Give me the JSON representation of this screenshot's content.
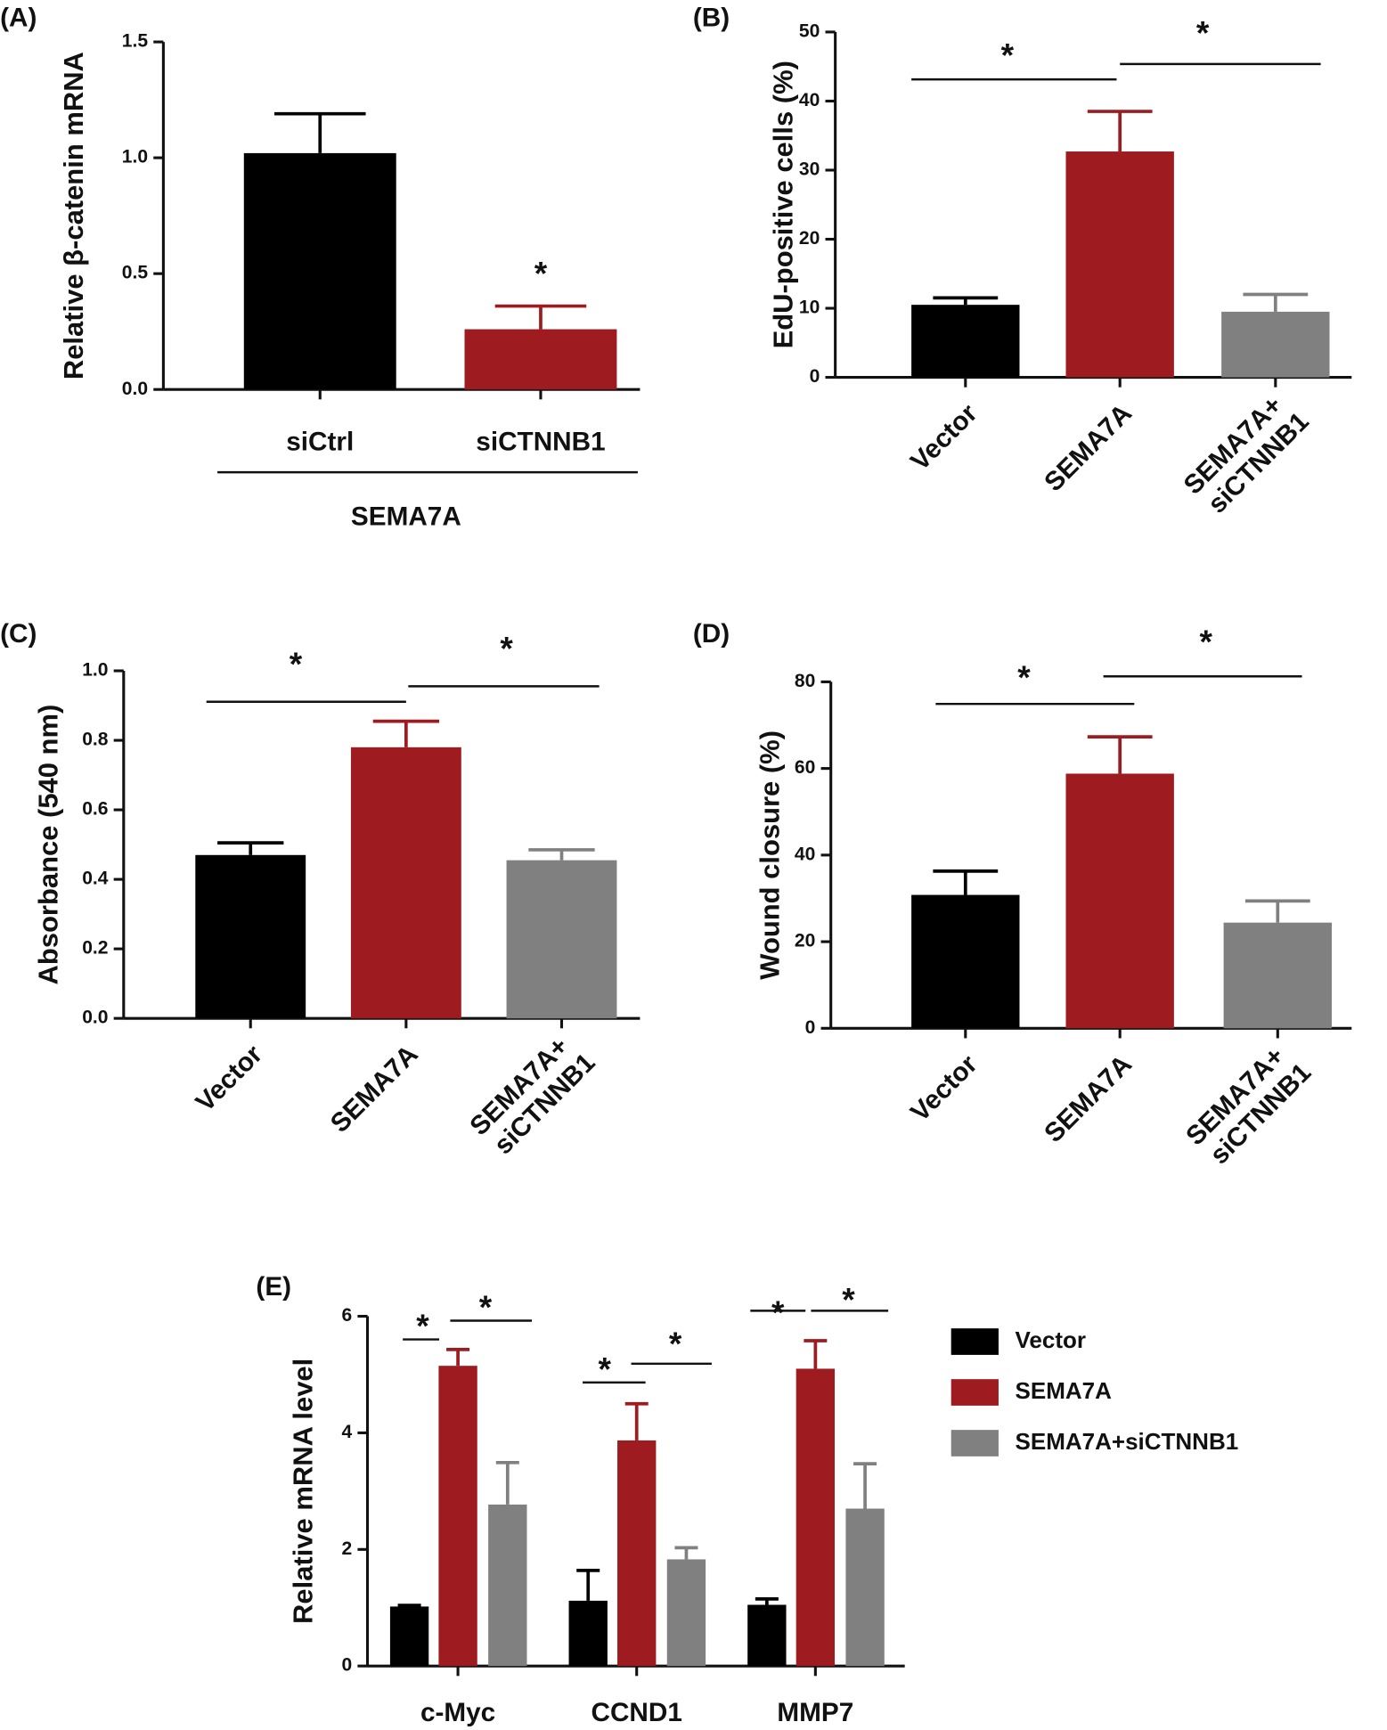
{
  "chart_data": [
    {
      "type": "bar",
      "panel": "(A)",
      "ylabel": "Relative β-catenin mRNA",
      "categories": [
        "siCtrl",
        "siCTNNB1"
      ],
      "group_label": "SEMA7A",
      "values": [
        1.02,
        0.26
      ],
      "errors": [
        0.17,
        0.1
      ],
      "colors": [
        "#000000",
        "#9e1b20"
      ],
      "ylim": [
        0,
        1.5
      ],
      "yticks": [
        {
          "value": 0,
          "label": "0.0"
        },
        0.5,
        {
          "value": 1,
          "label": "1.0"
        },
        1.5
      ],
      "annotations": [
        "*"
      ]
    },
    {
      "type": "bar",
      "panel": "(B)",
      "ylabel": "EdU-positive cells (%)",
      "categories": [
        "Vector",
        "SEMA7A",
        "SEMA7A+ siCTNNB1"
      ],
      "values": [
        10.5,
        32.7,
        9.5
      ],
      "errors": [
        1.0,
        5.8,
        2.5
      ],
      "colors": [
        "#000000",
        "#9e1b20",
        "#808080"
      ],
      "ylim": [
        0,
        50
      ],
      "yticks": [
        0,
        10,
        20,
        30,
        40,
        50
      ],
      "annotations": [
        "*",
        "*"
      ]
    },
    {
      "type": "bar",
      "panel": "(C)",
      "ylabel": "Absorbance (540 nm)",
      "categories": [
        "Vector",
        "SEMA7A",
        "SEMA7A+ siCTNNB1"
      ],
      "values": [
        0.47,
        0.78,
        0.455
      ],
      "errors": [
        0.035,
        0.075,
        0.03
      ],
      "colors": [
        "#000000",
        "#9e1b20",
        "#808080"
      ],
      "ylim": [
        0,
        1
      ],
      "yticks": [
        {
          "value": 0,
          "label": "0.0"
        },
        0.2,
        0.4,
        0.6,
        0.8,
        {
          "value": 1,
          "label": "1.0"
        }
      ],
      "annotations": [
        "*",
        "*"
      ]
    },
    {
      "type": "bar",
      "panel": "(D)",
      "ylabel": "Wound closure (%)",
      "categories": [
        "Vector",
        "SEMA7A",
        "SEMA7A+ siCTNNB1"
      ],
      "values": [
        30.8,
        58.8,
        24.4
      ],
      "errors": [
        5.5,
        8.5,
        5.0
      ],
      "colors": [
        "#000000",
        "#9e1b20",
        "#808080"
      ],
      "ylim": [
        0,
        80
      ],
      "yticks": [
        0,
        20,
        40,
        60,
        80
      ],
      "annotations": [
        "*",
        "*"
      ]
    },
    {
      "type": "grouped_bar",
      "panel": "(E)",
      "ylabel": "Relative mRNA level",
      "categories": [
        "c-Myc",
        "CCND1",
        "MMP7"
      ],
      "series": [
        {
          "name": "Vector",
          "color": "#000000",
          "values": [
            1.02,
            1.12,
            1.05
          ],
          "errors": [
            0.02,
            0.52,
            0.1
          ]
        },
        {
          "name": "SEMA7A",
          "color": "#9e1b20",
          "values": [
            5.15,
            3.87,
            5.1
          ],
          "errors": [
            0.28,
            0.63,
            0.48
          ]
        },
        {
          "name": "SEMA7A+siCTNNB1",
          "color": "#808080",
          "values": [
            2.77,
            1.83,
            2.7
          ],
          "errors": [
            0.72,
            0.2,
            0.77
          ]
        }
      ],
      "ylim": [
        0,
        6
      ],
      "yticks": [
        0,
        2,
        4,
        6
      ],
      "annotations": [
        "*",
        "*",
        "*",
        "*",
        "*",
        "*"
      ]
    }
  ]
}
